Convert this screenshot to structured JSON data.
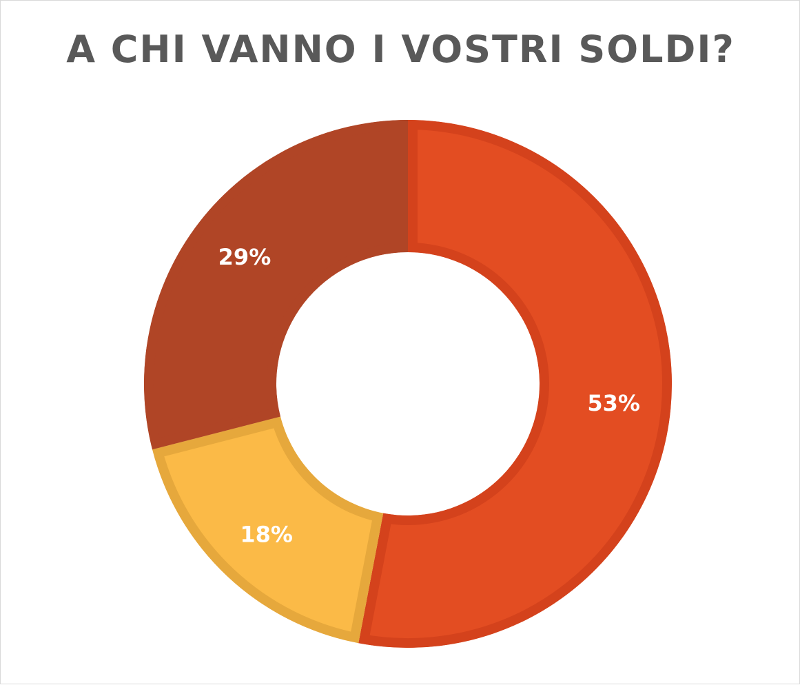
{
  "chart_data": {
    "type": "pie",
    "variant": "donut",
    "title": "A CHI VANNO I VOSTRI SOLDI?",
    "slices": [
      {
        "value": 53,
        "label": "53%",
        "color": "#E34D22",
        "border_color": "#D4421C"
      },
      {
        "value": 18,
        "label": "18%",
        "color": "#FBBA47",
        "border_color": "#E6A83C"
      },
      {
        "value": 29,
        "label": "29%",
        "color": "#B04526",
        "border_color": "#B04526"
      }
    ],
    "start_angle_deg": 0,
    "direction": "clockwise",
    "legend": "none"
  }
}
